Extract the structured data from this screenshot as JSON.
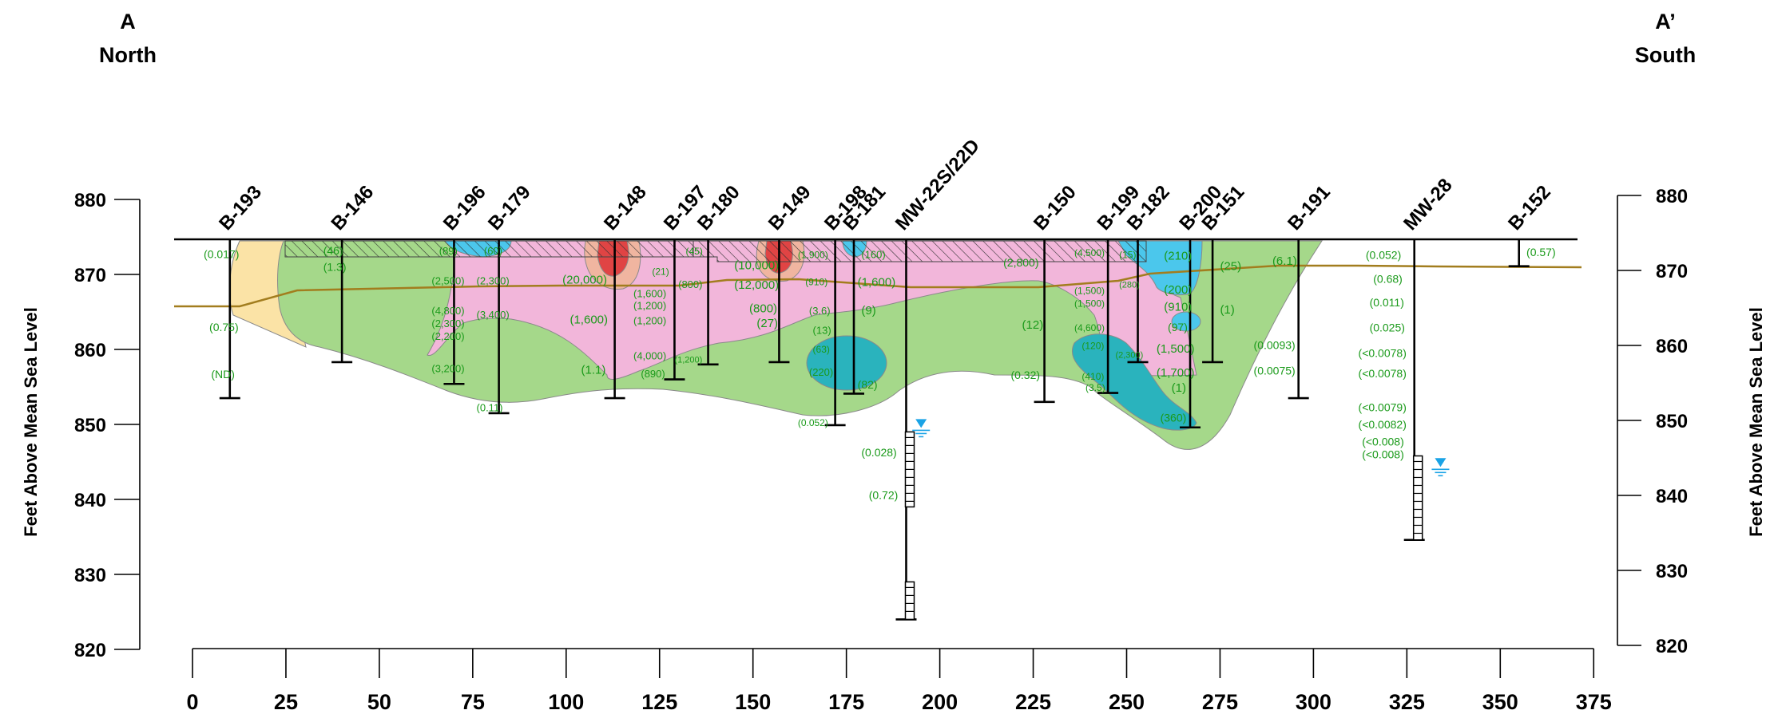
{
  "ends": {
    "left": {
      "letter": "A",
      "direction": "North"
    },
    "right": {
      "letter": "A’",
      "direction": "South"
    }
  },
  "axes": {
    "y_label": "Feet Above Mean Sea Level",
    "y_ticks": [
      880,
      870,
      860,
      850,
      840,
      830,
      820
    ],
    "x_ticks": [
      0,
      25,
      50,
      75,
      100,
      125,
      150,
      175,
      200,
      225,
      250,
      275,
      300,
      325,
      350,
      375
    ],
    "y_range": [
      820,
      880
    ],
    "x_range": [
      0,
      375
    ]
  },
  "colors": {
    "green_zone": "#a5d88a",
    "pink_zone": "#f2b6da",
    "yellow_zone": "#fbe3a6",
    "blue_zone": "#4bc7ec",
    "teal_zone": "#2ab3bd",
    "red_zone": "#e04444",
    "water_table": "#a27d1e",
    "label_text": "#1a9a1a",
    "water_symbol": "#1aa3e6"
  },
  "borings": [
    {
      "id": "B-193",
      "x": 10,
      "bottom": 853.5
    },
    {
      "id": "B-146",
      "x": 40,
      "bottom": 858.3
    },
    {
      "id": "B-196",
      "x": 70,
      "bottom": 855.4
    },
    {
      "id": "B-179",
      "x": 82,
      "bottom": 851.5
    },
    {
      "id": "B-148",
      "x": 113,
      "bottom": 853.5
    },
    {
      "id": "B-197",
      "x": 129,
      "bottom": 856.0
    },
    {
      "id": "B-180",
      "x": 138,
      "bottom": 858.0
    },
    {
      "id": "B-149",
      "x": 157,
      "bottom": 858.3
    },
    {
      "id": "B-198",
      "x": 172,
      "bottom": 849.9
    },
    {
      "id": "B-181",
      "x": 177,
      "bottom": 854.1
    },
    {
      "id": "MW-22S/22D",
      "x": 191,
      "bottom": 824.0
    },
    {
      "id": "B-150",
      "x": 228,
      "bottom": 853.0
    },
    {
      "id": "B-199",
      "x": 245,
      "bottom": 854.2
    },
    {
      "id": "B-182",
      "x": 253,
      "bottom": 858.3
    },
    {
      "id": "B-200",
      "x": 267,
      "bottom": 849.6
    },
    {
      "id": "B-151",
      "x": 273,
      "bottom": 858.3
    },
    {
      "id": "B-191",
      "x": 296,
      "bottom": 853.5
    },
    {
      "id": "MW-28",
      "x": 327,
      "bottom": 834.6
    },
    {
      "id": "B-152",
      "x": 355,
      "bottom": 871.1
    }
  ],
  "concentrations": [
    {
      "text": "(0.017)",
      "x": 3,
      "y": 872.7,
      "size": 14
    },
    {
      "text": "(0.75)",
      "x": 4.5,
      "y": 863.0,
      "size": 14
    },
    {
      "text": "(ND)",
      "x": 5,
      "y": 856.7,
      "size": 14
    },
    {
      "text": "(46)",
      "x": 35,
      "y": 873.2,
      "size": 14
    },
    {
      "text": "(1.3)",
      "x": 35,
      "y": 871.0,
      "size": 14
    },
    {
      "text": "(89)",
      "x": 66,
      "y": 873.2,
      "size": 13
    },
    {
      "text": "(60)",
      "x": 78,
      "y": 873.2,
      "size": 13
    },
    {
      "text": "(2,500)",
      "x": 64,
      "y": 869.2,
      "size": 13
    },
    {
      "text": "(2,300)",
      "x": 76,
      "y": 869.2,
      "size": 13
    },
    {
      "text": "(4,800)",
      "x": 64,
      "y": 865.2,
      "size": 13
    },
    {
      "text": "(2,300)",
      "x": 64,
      "y": 863.5,
      "size": 13
    },
    {
      "text": "(2,200)",
      "x": 64,
      "y": 861.8,
      "size": 13
    },
    {
      "text": "(3,400)",
      "x": 76,
      "y": 864.7,
      "size": 13
    },
    {
      "text": "(3,200)",
      "x": 64,
      "y": 857.5,
      "size": 13
    },
    {
      "text": "(0.11)",
      "x": 76,
      "y": 852.3,
      "size": 13
    },
    {
      "text": "(20,000)",
      "x": 99,
      "y": 869.3,
      "size": 15
    },
    {
      "text": "(1,600)",
      "x": 101,
      "y": 864.0,
      "size": 15
    },
    {
      "text": "(1.1)",
      "x": 104,
      "y": 857.3,
      "size": 15
    },
    {
      "text": "(21)",
      "x": 123,
      "y": 870.5,
      "size": 12
    },
    {
      "text": "(45)",
      "x": 132,
      "y": 873.2,
      "size": 12
    },
    {
      "text": "(800)",
      "x": 130,
      "y": 868.7,
      "size": 13
    },
    {
      "text": "(1,600)",
      "x": 118,
      "y": 867.5,
      "size": 13
    },
    {
      "text": "(1,200)",
      "x": 118,
      "y": 865.9,
      "size": 13
    },
    {
      "text": "(1,200)",
      "x": 118,
      "y": 863.9,
      "size": 13
    },
    {
      "text": "(4,000)",
      "x": 118,
      "y": 859.2,
      "size": 13
    },
    {
      "text": "(890)",
      "x": 120,
      "y": 856.8,
      "size": 13
    },
    {
      "text": "(1,200)",
      "x": 129,
      "y": 858.8,
      "size": 11
    },
    {
      "text": "(10,000)",
      "x": 145,
      "y": 871.2,
      "size": 15
    },
    {
      "text": "(12,000)",
      "x": 145,
      "y": 868.6,
      "size": 15
    },
    {
      "text": "(800)",
      "x": 149,
      "y": 865.5,
      "size": 15
    },
    {
      "text": "(27)",
      "x": 151,
      "y": 863.5,
      "size": 15
    },
    {
      "text": "(1,900)",
      "x": 162,
      "y": 872.7,
      "size": 12
    },
    {
      "text": "(910)",
      "x": 164,
      "y": 869.1,
      "size": 12
    },
    {
      "text": "(3.6)",
      "x": 165,
      "y": 865.2,
      "size": 13
    },
    {
      "text": "(13)",
      "x": 166,
      "y": 862.6,
      "size": 13
    },
    {
      "text": "(63)",
      "x": 166,
      "y": 860.1,
      "size": 12
    },
    {
      "text": "(220)",
      "x": 165,
      "y": 857.0,
      "size": 13
    },
    {
      "text": "(0.052)",
      "x": 162,
      "y": 850.3,
      "size": 12
    },
    {
      "text": "(160)",
      "x": 179,
      "y": 872.7,
      "size": 13
    },
    {
      "text": "(1,600)",
      "x": 178,
      "y": 869.0,
      "size": 15
    },
    {
      "text": "(9)",
      "x": 179,
      "y": 865.2,
      "size": 15
    },
    {
      "text": "(82)",
      "x": 178,
      "y": 855.3,
      "size": 14
    },
    {
      "text": "(0.028)",
      "x": 179,
      "y": 846.3,
      "size": 14
    },
    {
      "text": "(0.72)",
      "x": 181,
      "y": 840.6,
      "size": 14
    },
    {
      "text": "(2,800)",
      "x": 217,
      "y": 871.6,
      "size": 14
    },
    {
      "text": "(12)",
      "x": 222,
      "y": 863.3,
      "size": 15
    },
    {
      "text": "(0.32)",
      "x": 219,
      "y": 856.6,
      "size": 14
    },
    {
      "text": "(4,500)",
      "x": 236,
      "y": 873.0,
      "size": 12
    },
    {
      "text": "(15)",
      "x": 248,
      "y": 872.7,
      "size": 12
    },
    {
      "text": "(1,500)",
      "x": 236,
      "y": 867.9,
      "size": 12
    },
    {
      "text": "(1,500)",
      "x": 236,
      "y": 866.2,
      "size": 12
    },
    {
      "text": "(280)",
      "x": 248,
      "y": 868.8,
      "size": 11
    },
    {
      "text": "(4,600)",
      "x": 236,
      "y": 863.0,
      "size": 12
    },
    {
      "text": "(120)",
      "x": 238,
      "y": 860.6,
      "size": 12
    },
    {
      "text": "(2,300)",
      "x": 247,
      "y": 859.4,
      "size": 11
    },
    {
      "text": "(410)",
      "x": 238,
      "y": 856.5,
      "size": 12
    },
    {
      "text": "(3.5)",
      "x": 239,
      "y": 855.0,
      "size": 12
    },
    {
      "text": "(210)",
      "x": 260,
      "y": 872.5,
      "size": 15
    },
    {
      "text": "(200)",
      "x": 260,
      "y": 868.0,
      "size": 15
    },
    {
      "text": "(910)",
      "x": 260,
      "y": 865.7,
      "size": 15
    },
    {
      "text": "(97)",
      "x": 261,
      "y": 863.0,
      "size": 14
    },
    {
      "text": "(1,500)",
      "x": 258,
      "y": 860.1,
      "size": 15
    },
    {
      "text": "(1,700)",
      "x": 258,
      "y": 856.9,
      "size": 15
    },
    {
      "text": "(1)",
      "x": 262,
      "y": 854.9,
      "size": 15
    },
    {
      "text": "(360)",
      "x": 259,
      "y": 850.9,
      "size": 14
    },
    {
      "text": "(25)",
      "x": 275,
      "y": 871.1,
      "size": 15
    },
    {
      "text": "(1)",
      "x": 275,
      "y": 865.3,
      "size": 15
    },
    {
      "text": "(6.1)",
      "x": 289,
      "y": 871.8,
      "size": 15
    },
    {
      "text": "(0.0093)",
      "x": 284,
      "y": 860.6,
      "size": 14
    },
    {
      "text": "(0.0075)",
      "x": 284,
      "y": 857.2,
      "size": 14
    },
    {
      "text": "(0.052)",
      "x": 314,
      "y": 872.6,
      "size": 14
    },
    {
      "text": "(0.68)",
      "x": 316,
      "y": 869.4,
      "size": 14
    },
    {
      "text": "(0.011)",
      "x": 315,
      "y": 866.3,
      "size": 14
    },
    {
      "text": "(0.025)",
      "x": 315,
      "y": 862.9,
      "size": 14
    },
    {
      "text": "(<0.0078)",
      "x": 312,
      "y": 859.5,
      "size": 14
    },
    {
      "text": "(<0.0078)",
      "x": 312,
      "y": 856.8,
      "size": 14
    },
    {
      "text": "(<0.0079)",
      "x": 312,
      "y": 852.3,
      "size": 14
    },
    {
      "text": "(<0.0082)",
      "x": 312,
      "y": 850.0,
      "size": 14
    },
    {
      "text": "(<0.008)",
      "x": 313,
      "y": 847.7,
      "size": 14
    },
    {
      "text": "(<0.008)",
      "x": 313,
      "y": 846.0,
      "size": 14
    },
    {
      "text": "(0.57)",
      "x": 357,
      "y": 873.0,
      "size": 14
    }
  ]
}
